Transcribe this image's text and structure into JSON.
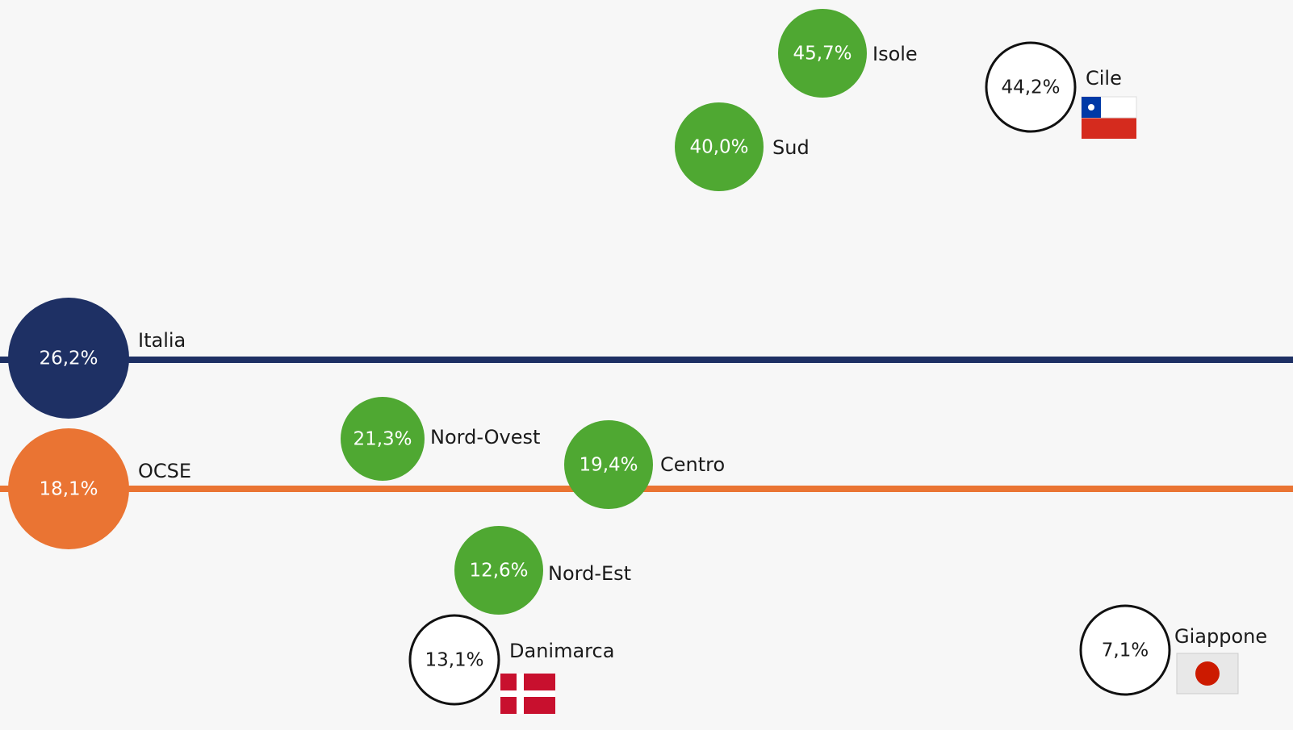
{
  "chart_data": {
    "type": "bubble",
    "categories": [
      "Isole",
      "Cile",
      "Sud",
      "Italia",
      "Nord-Ovest",
      "Centro",
      "OCSE",
      "Nord-Est",
      "Danimarca",
      "Giappone"
    ],
    "values": [
      45.7,
      44.2,
      40.0,
      26.2,
      21.3,
      19.4,
      18.1,
      12.6,
      13.1,
      7.1
    ],
    "value_labels": [
      "45,7%",
      "44,2%",
      "40,0%",
      "26,2%",
      "21,3%",
      "19,4%",
      "18,1%",
      "12,6%",
      "13,1%",
      "7,1%"
    ],
    "colors": [
      "#4fa832",
      "#ffffff",
      "#4fa832",
      "#1e3064",
      "#4fa832",
      "#4fa832",
      "#ea7433",
      "#4fa832",
      "#ffffff",
      "#ffffff"
    ]
  }
}
